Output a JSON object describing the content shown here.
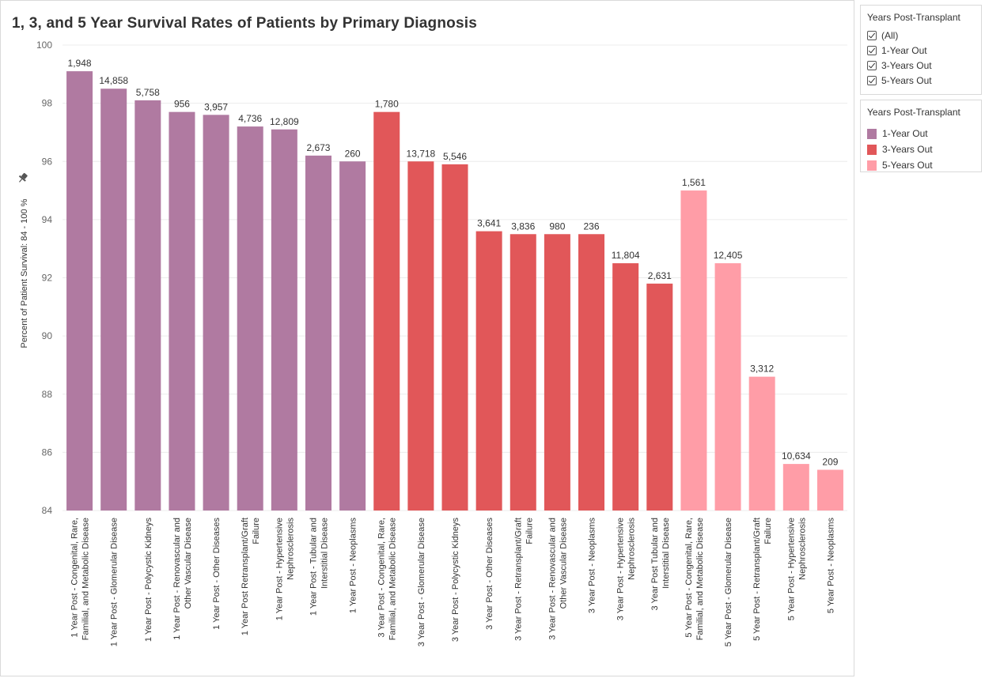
{
  "chart_data": {
    "type": "bar",
    "title": "1, 3, and 5 Year Survival Rates of Patients by Primary Diagnosis",
    "ylabel": "Percent of Patient Survival: 84 - 100 %",
    "ylabel_icon": "pin-icon",
    "ylim": [
      84,
      100
    ],
    "yticks": [
      84,
      86,
      88,
      90,
      92,
      94,
      96,
      98,
      100
    ],
    "grid": true,
    "categories": [
      "1 Year Post - Congenital, Rare, Familial, and Metabolic Disease",
      "1 Year Post - Glomerular Disease",
      "1 Year Post - Polycystic Kidneys",
      "1 Year Post - Renovascular and Other Vascular Disease",
      "1 Year Post - Other Diseases",
      "1 Year Post Retransplant/Graft Failure",
      "1 Year Post - Hypertensive Nephrosclerosis",
      "1 Year Post - Tubular and Interstitial Disease",
      "1 Year Post - Neoplasms",
      "3 Year Post - Congenital, Rare, Familial, and Metabolic Disease",
      "3 Year Post - Glomerular Disease",
      "3 Year Post - Polycystic Kidneys",
      "3 Year Post - Other Diseases",
      "3 Year Post - Retransplant/Graft Failure",
      "3 Year Post - Renovascular and Other Vascular Disease",
      "3 Year Post - Neoplasms",
      "3 Year Post - Hypertensive Nephrosclerosis",
      "3 Year Post Tubular and Interstitial Disease",
      "5 Year Post - Congenital, Rare, Familial, and Metabolic Disease",
      "5 Year Post - Glomerular Disease",
      "5 Year Post - Retransplant/Graft Failure",
      "5 Year Post - Hypertensive Nephrosclerosis",
      "5 Year Post - Neoplasms"
    ],
    "category_label_lines": [
      [
        "1 Year Post - Congenital, Rare,",
        "Familial, and Metabolic Disease"
      ],
      [
        "1 Year Post - Glomerular Disease"
      ],
      [
        "1 Year Post - Polycystic Kidneys"
      ],
      [
        "1 Year Post - Renovascular and",
        "Other Vascular Disease"
      ],
      [
        "1 Year Post - Other Diseases"
      ],
      [
        "1 Year Post Retransplant/Graft",
        "Failure"
      ],
      [
        "1 Year Post - Hypertensive",
        "Nephrosclerosis"
      ],
      [
        "1 Year Post - Tubular and",
        "Interstitial Disease"
      ],
      [
        "1 Year Post - Neoplasms"
      ],
      [
        "3 Year Post - Congenital, Rare,",
        "Familial, and Metabolic Disease"
      ],
      [
        "3 Year Post - Glomerular Disease"
      ],
      [
        "3 Year Post - Polycystic Kidneys"
      ],
      [
        "3 Year Post - Other Diseases"
      ],
      [
        "3 Year Post - Retransplant/Graft",
        "Failure"
      ],
      [
        "3 Year Post - Renovascular and",
        "Other Vascular Disease"
      ],
      [
        "3 Year Post - Neoplasms"
      ],
      [
        "3 Year Post - Hypertensive",
        "Nephrosclerosis"
      ],
      [
        "3 Year Post Tubular and",
        "Interstitial Disease"
      ],
      [
        "5 Year Post - Congenital, Rare,",
        "Familial, and Metabolic Disease"
      ],
      [
        "5 Year Post - Glomerular Disease"
      ],
      [
        "5 Year Post - Retransplant/Graft",
        "Failure"
      ],
      [
        "5 Year Post - Hypertensive",
        "Nephrosclerosis"
      ],
      [
        "5 Year Post - Neoplasms"
      ]
    ],
    "values": [
      99.1,
      98.5,
      98.1,
      97.7,
      97.6,
      97.2,
      97.1,
      96.2,
      96.0,
      97.7,
      96.0,
      95.9,
      93.6,
      93.5,
      93.5,
      93.5,
      92.5,
      91.8,
      95.0,
      92.5,
      88.6,
      85.6,
      85.4
    ],
    "data_labels": [
      "1,948",
      "14,858",
      "5,758",
      "956",
      "3,957",
      "4,736",
      "12,809",
      "2,673",
      "260",
      "1,780",
      "13,718",
      "5,546",
      "3,641",
      "3,836",
      "980",
      "236",
      "11,804",
      "2,631",
      "1,561",
      "12,405",
      "3,312",
      "10,634",
      "209"
    ],
    "groups": [
      "1-Year Out",
      "1-Year Out",
      "1-Year Out",
      "1-Year Out",
      "1-Year Out",
      "1-Year Out",
      "1-Year Out",
      "1-Year Out",
      "1-Year Out",
      "3-Years Out",
      "3-Years Out",
      "3-Years Out",
      "3-Years Out",
      "3-Years Out",
      "3-Years Out",
      "3-Years Out",
      "3-Years Out",
      "3-Years Out",
      "5-Years Out",
      "5-Years Out",
      "5-Years Out",
      "5-Years Out",
      "5-Years Out"
    ],
    "group_colors": {
      "1-Year Out": "#b07aa1",
      "3-Years Out": "#e15759",
      "5-Years Out": "#ff9da7"
    },
    "legend_placement": "right"
  },
  "filter": {
    "title": "Years Post-Transplant",
    "items": [
      {
        "label": "(All)",
        "checked": true
      },
      {
        "label": "1-Year Out",
        "checked": true
      },
      {
        "label": "3-Years Out",
        "checked": true
      },
      {
        "label": "5-Years Out",
        "checked": true
      }
    ]
  },
  "legend": {
    "title": "Years Post-Transplant",
    "items": [
      {
        "label": "1-Year Out",
        "color": "#b07aa1"
      },
      {
        "label": "3-Years Out",
        "color": "#e15759"
      },
      {
        "label": "5-Years Out",
        "color": "#ff9da7"
      }
    ]
  }
}
